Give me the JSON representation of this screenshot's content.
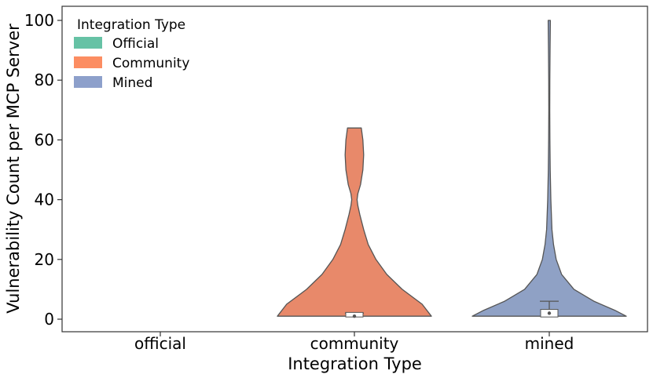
{
  "chart_data": {
    "type": "violin",
    "xlabel": "Integration Type",
    "ylabel": "Vulnerability Count per MCP Server",
    "categories": [
      "official",
      "community",
      "mined"
    ],
    "ylim": [
      -4,
      105
    ],
    "yticks": [
      "0",
      "20",
      "40",
      "60",
      "80",
      "100"
    ],
    "grid": false,
    "legend": {
      "title": "Integration Type",
      "placement": "top-left",
      "entries": [
        {
          "label": "Official",
          "color": "#66c2a5"
        },
        {
          "label": "Community",
          "color": "#fc8d62"
        },
        {
          "label": "Mined",
          "color": "#8da0cb"
        }
      ]
    },
    "series": [
      {
        "category": "official",
        "color": "#66c2a5",
        "values": []
      },
      {
        "category": "community",
        "color": "#e8896a",
        "min": 1,
        "max": 64,
        "median": 1,
        "q1": 1,
        "q3": 2,
        "whisker_low": 1,
        "whisker_high": 2,
        "density": [
          [
            1,
            1.0
          ],
          [
            5,
            0.88
          ],
          [
            10,
            0.62
          ],
          [
            15,
            0.42
          ],
          [
            20,
            0.28
          ],
          [
            25,
            0.18
          ],
          [
            30,
            0.12
          ],
          [
            35,
            0.07
          ],
          [
            38,
            0.045
          ],
          [
            40,
            0.035
          ],
          [
            42,
            0.045
          ],
          [
            45,
            0.08
          ],
          [
            50,
            0.11
          ],
          [
            55,
            0.12
          ],
          [
            60,
            0.11
          ],
          [
            64,
            0.09
          ]
        ]
      },
      {
        "category": "mined",
        "color": "#8fa1c5",
        "min": 1,
        "max": 100,
        "median": 2,
        "q1": 1,
        "q3": 3,
        "whisker_low": 1,
        "whisker_high": 6,
        "density": [
          [
            1,
            1.0
          ],
          [
            3,
            0.85
          ],
          [
            6,
            0.58
          ],
          [
            10,
            0.32
          ],
          [
            15,
            0.16
          ],
          [
            20,
            0.09
          ],
          [
            25,
            0.055
          ],
          [
            30,
            0.035
          ],
          [
            40,
            0.02
          ],
          [
            50,
            0.012
          ],
          [
            60,
            0.008
          ],
          [
            70,
            0.006
          ],
          [
            80,
            0.007
          ],
          [
            90,
            0.01
          ],
          [
            95,
            0.012
          ],
          [
            100,
            0.014
          ]
        ]
      }
    ]
  }
}
